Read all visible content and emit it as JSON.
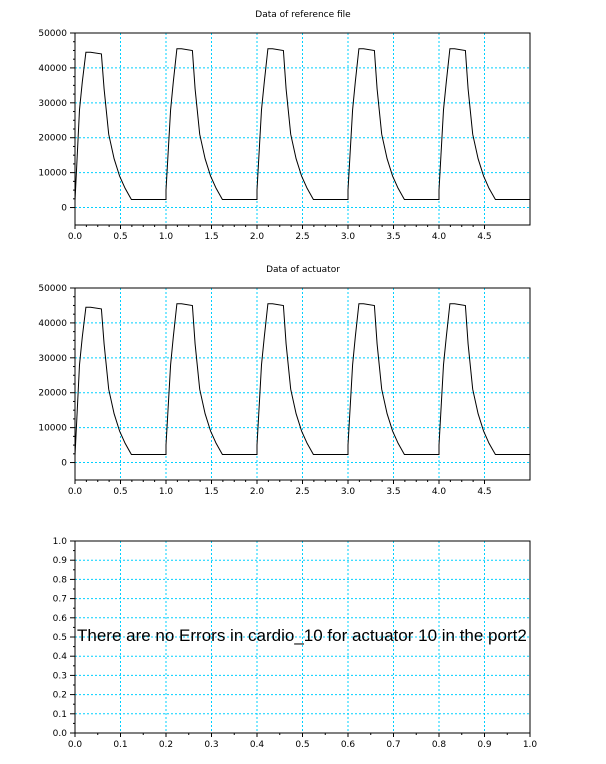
{
  "chart_data": [
    {
      "type": "line",
      "title": "Data of reference file",
      "xlim": [
        0,
        5
      ],
      "ylim": [
        -5000,
        50000
      ],
      "xticks": [
        "0.0",
        "0.5",
        "1.0",
        "1.5",
        "2.0",
        "2.5",
        "3.0",
        "3.5",
        "4.0",
        "4.5"
      ],
      "yticks": [
        "0",
        "10000",
        "20000",
        "30000",
        "40000",
        "50000"
      ],
      "grid": true,
      "series": [
        {
          "x": [
            0.0,
            0.05,
            0.08,
            0.12,
            0.17,
            0.29,
            0.32,
            0.37,
            0.43,
            0.49,
            0.55,
            0.62,
            1.0,
            1.0,
            1.05,
            1.08,
            1.12,
            1.17,
            1.29,
            1.32,
            1.37,
            1.43,
            1.49,
            1.55,
            1.62,
            2.0,
            2.0,
            2.05,
            2.08,
            2.12,
            2.17,
            2.29,
            2.32,
            2.37,
            2.43,
            2.49,
            2.55,
            2.62,
            3.0,
            3.0,
            3.05,
            3.08,
            3.12,
            3.17,
            3.29,
            3.32,
            3.37,
            3.43,
            3.49,
            3.55,
            3.62,
            4.0,
            4.0,
            4.05,
            4.08,
            4.12,
            4.17,
            4.29,
            4.32,
            4.37,
            4.43,
            4.49,
            4.55,
            4.62,
            5.0
          ],
          "y": [
            2000,
            28000,
            36000,
            44500,
            44500,
            44000,
            34000,
            21000,
            14000,
            9000,
            5500,
            2300,
            2300,
            5000,
            28000,
            36000,
            45500,
            45500,
            45000,
            34000,
            21000,
            14000,
            9000,
            5500,
            2300,
            2300,
            5000,
            28000,
            36000,
            45500,
            45500,
            45000,
            34000,
            21000,
            14000,
            9000,
            5500,
            2300,
            2300,
            5000,
            28000,
            36000,
            45500,
            45500,
            45000,
            34000,
            21000,
            14000,
            9000,
            5500,
            2300,
            2300,
            5000,
            28000,
            36000,
            45500,
            45500,
            45000,
            34000,
            21000,
            14000,
            9000,
            5500,
            2300,
            2300
          ]
        }
      ]
    },
    {
      "type": "line",
      "title": "Data of actuator",
      "xlim": [
        0,
        5
      ],
      "ylim": [
        -5000,
        50000
      ],
      "xticks": [
        "0.0",
        "0.5",
        "1.0",
        "1.5",
        "2.0",
        "2.5",
        "3.0",
        "3.5",
        "4.0",
        "4.5"
      ],
      "yticks": [
        "0",
        "10000",
        "20000",
        "30000",
        "40000",
        "50000"
      ],
      "grid": true,
      "series": [
        {
          "x": [
            0.0,
            0.05,
            0.08,
            0.12,
            0.17,
            0.29,
            0.32,
            0.37,
            0.43,
            0.49,
            0.55,
            0.62,
            1.0,
            1.0,
            1.05,
            1.08,
            1.12,
            1.17,
            1.29,
            1.32,
            1.37,
            1.43,
            1.49,
            1.55,
            1.62,
            2.0,
            2.0,
            2.05,
            2.08,
            2.12,
            2.17,
            2.29,
            2.32,
            2.37,
            2.43,
            2.49,
            2.55,
            2.62,
            3.0,
            3.0,
            3.05,
            3.08,
            3.12,
            3.17,
            3.29,
            3.32,
            3.37,
            3.43,
            3.49,
            3.55,
            3.62,
            4.0,
            4.0,
            4.05,
            4.08,
            4.12,
            4.17,
            4.29,
            4.32,
            4.37,
            4.43,
            4.49,
            4.55,
            4.62,
            5.0
          ],
          "y": [
            2000,
            28000,
            36000,
            44500,
            44500,
            44000,
            34000,
            21000,
            14000,
            9000,
            5500,
            2300,
            2300,
            5000,
            28000,
            36000,
            45500,
            45500,
            45000,
            34000,
            21000,
            14000,
            9000,
            5500,
            2300,
            2300,
            5000,
            28000,
            36000,
            45500,
            45500,
            45000,
            34000,
            21000,
            14000,
            9000,
            5500,
            2300,
            2300,
            5000,
            28000,
            36000,
            45500,
            45500,
            45000,
            34000,
            21000,
            14000,
            9000,
            5500,
            2300,
            2300,
            5000,
            28000,
            36000,
            45500,
            45500,
            45000,
            34000,
            21000,
            14000,
            9000,
            5500,
            2300,
            2300
          ]
        }
      ]
    },
    {
      "type": "line",
      "title": "",
      "xlim": [
        0,
        1
      ],
      "ylim": [
        0,
        1
      ],
      "xticks": [
        "0.0",
        "0.1",
        "0.2",
        "0.3",
        "0.4",
        "0.5",
        "0.6",
        "0.7",
        "0.8",
        "0.9",
        "1.0"
      ],
      "yticks": [
        "0.0",
        "0.1",
        "0.2",
        "0.3",
        "0.4",
        "0.5",
        "0.6",
        "0.7",
        "0.8",
        "0.9",
        "1.0"
      ],
      "grid": true,
      "annotation": "There are no Errors in cardio_10 for actuator 10 in the port2",
      "series": []
    }
  ]
}
